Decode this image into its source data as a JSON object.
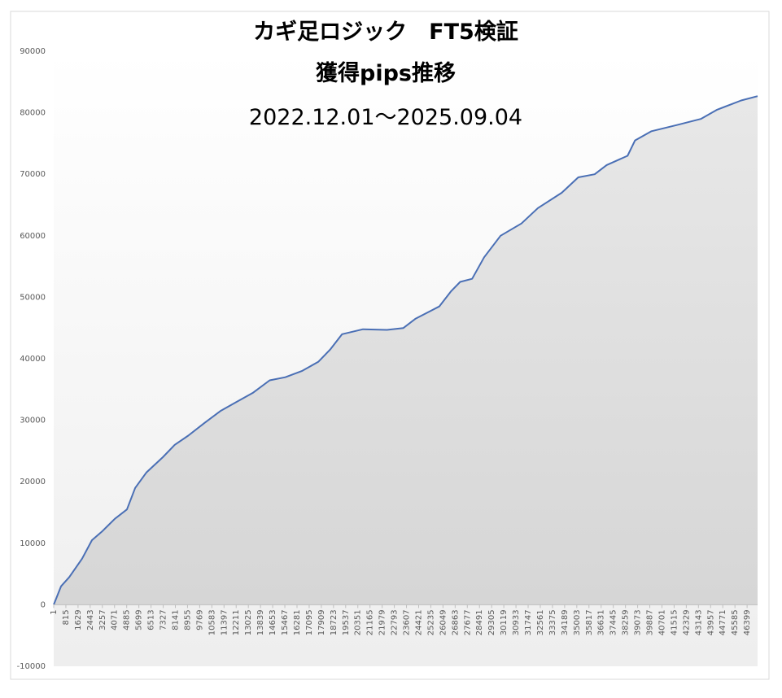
{
  "chart_data": {
    "type": "area",
    "title": "カギ足ロジック　FT5検証",
    "subtitle": "獲得pips推移",
    "date_range": "2022.12.01～2025.09.04",
    "x": [
      1,
      490,
      1040,
      1900,
      2560,
      3270,
      4100,
      4900,
      5450,
      6200,
      7300,
      8100,
      9000,
      10050,
      11150,
      12250,
      13350,
      14450,
      15500,
      16600,
      17700,
      18500,
      19300,
      20700,
      22300,
      23400,
      24200,
      25800,
      26600,
      27200,
      28000,
      28800,
      29900,
      31300,
      32400,
      34000,
      35100,
      36200,
      37000,
      38400,
      38900,
      40000,
      41700,
      43300,
      44400,
      46000,
      47100
    ],
    "values": [
      0,
      3000,
      4500,
      7500,
      10500,
      12000,
      14000,
      15500,
      19000,
      21500,
      24000,
      26000,
      27500,
      29500,
      31500,
      33000,
      34500,
      36500,
      37000,
      38000,
      39500,
      41500,
      44000,
      44800,
      44700,
      45000,
      46500,
      48500,
      51000,
      52500,
      53000,
      56500,
      60000,
      62000,
      64500,
      67000,
      69500,
      70000,
      71500,
      73000,
      75500,
      77000,
      78000,
      79000,
      80500,
      82000,
      82700
    ],
    "color": "#4a6fb5",
    "fill": "#dcdcdc",
    "xlim": [
      1,
      47100
    ],
    "xticks": [
      1,
      815,
      1629,
      2443,
      3257,
      4071,
      4885,
      5699,
      6513,
      7327,
      8141,
      8955,
      9769,
      10583,
      11397,
      12211,
      13025,
      13839,
      14653,
      15467,
      16281,
      17095,
      17909,
      18723,
      19537,
      20351,
      21165,
      21979,
      22793,
      23607,
      24421,
      25235,
      26049,
      26863,
      27677,
      28491,
      29305,
      30119,
      30933,
      31747,
      32561,
      33375,
      34189,
      35003,
      35817,
      36631,
      37445,
      38259,
      39073,
      39887,
      40701,
      41515,
      42329,
      43143,
      43957,
      44771,
      45585,
      46399
    ],
    "ylim": [
      -10000,
      90000
    ],
    "yticks": [
      -10000,
      0,
      10000,
      20000,
      30000,
      40000,
      50000,
      60000,
      70000,
      80000,
      90000
    ]
  }
}
